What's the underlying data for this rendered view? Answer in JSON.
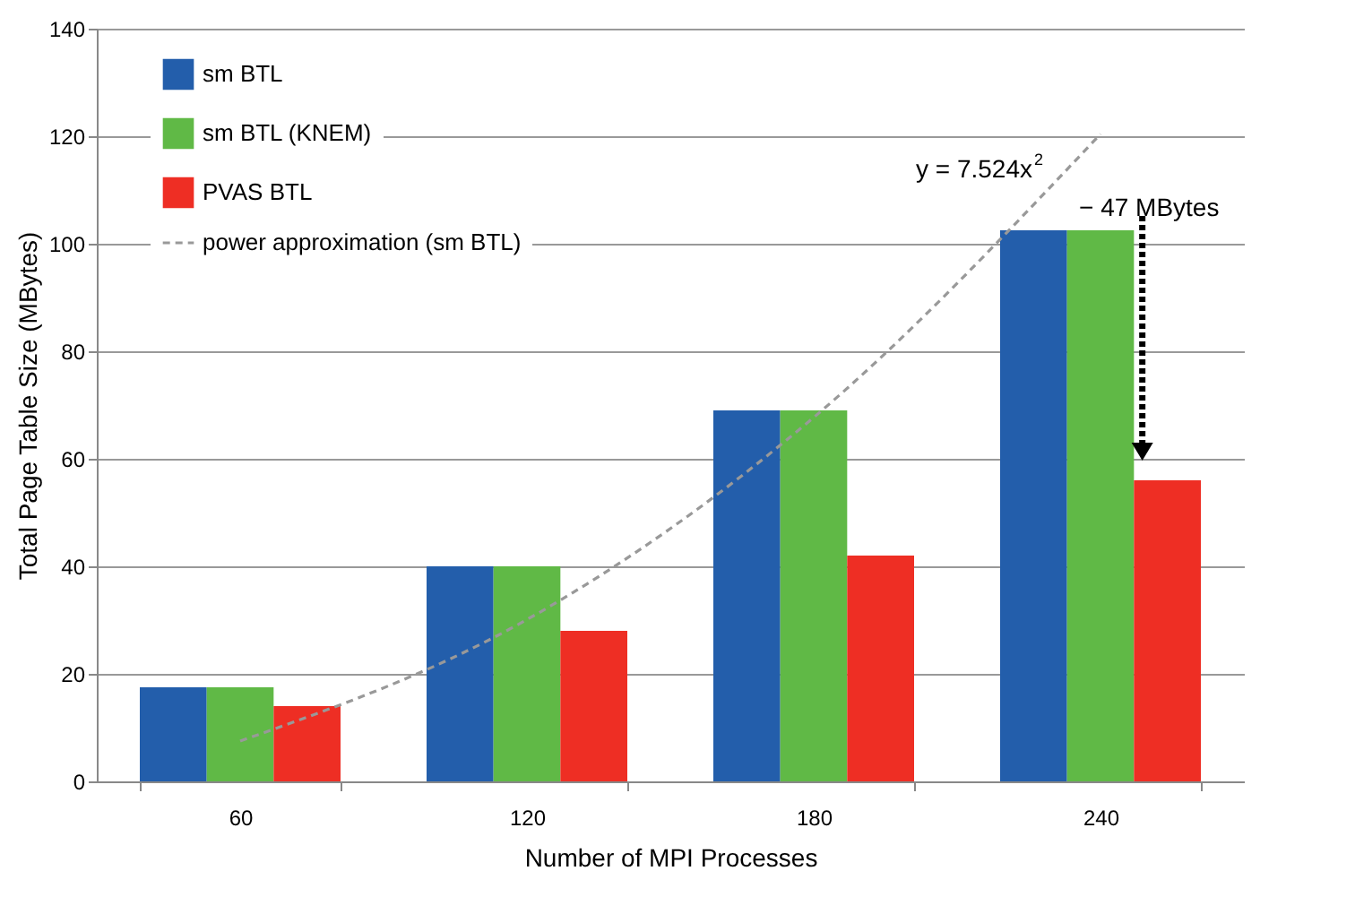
{
  "chart_data": {
    "type": "bar",
    "xlabel": "Number of MPI Processes",
    "ylabel": "Total Page Table Size (MBytes)",
    "categories": [
      "60",
      "120",
      "180",
      "240"
    ],
    "series": [
      {
        "name": "sm BTL",
        "color": "#235eab",
        "values": [
          17.5,
          40,
          69,
          102.5
        ]
      },
      {
        "name": "sm BTL (KNEM)",
        "color": "#60b946",
        "values": [
          17.5,
          40,
          69,
          102.5
        ]
      },
      {
        "name": "PVAS BTL",
        "color": "#ee2e24",
        "values": [
          14,
          28,
          42,
          56
        ]
      },
      {
        "name": "power approximation (sm BTL)",
        "type": "line",
        "color": "#999999",
        "line_style": "dashed",
        "marker": "none",
        "values": [
          7.5,
          30.1,
          67.7,
          120.4
        ]
      }
    ],
    "ylim": [
      0,
      140
    ],
    "yticks": [
      0,
      20,
      40,
      60,
      80,
      100,
      120,
      140
    ],
    "grid": "y",
    "legend": "top left",
    "annotations": [
      {
        "text": "y = 7.524x$^{2}$",
        "x": "240",
        "y": 120.4
      },
      {
        "text": "− 47 MBytes",
        "x": "240",
        "y": 102.5
      }
    ]
  }
}
